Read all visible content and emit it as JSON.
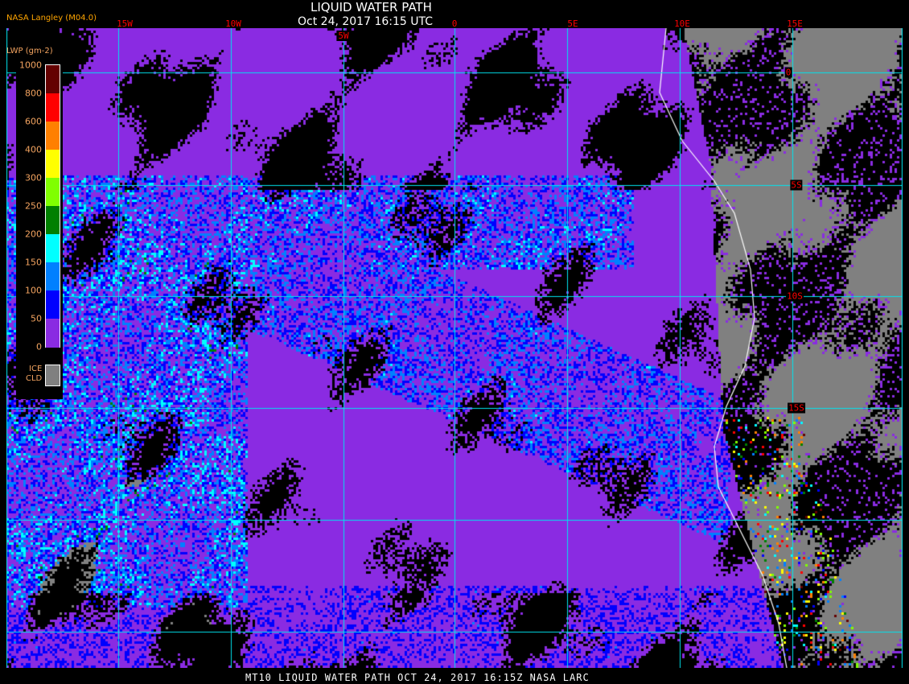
{
  "header": {
    "title": "LIQUID WATER PATH",
    "datetime": "Oct 24, 2017 16:15 UTC",
    "brand": "NASA Langley (M04.0)"
  },
  "footer": "MT10  LIQUID WATER PATH  OCT 24, 2017 16:15Z  NASA LARC",
  "longitude_labels": [
    "15W",
    "10W",
    "5W",
    "0",
    "5E",
    "10E",
    "15E"
  ],
  "latitude_labels": [
    "0",
    "5S",
    "10S",
    "15S"
  ],
  "legend": {
    "title": "LWP (gm-2)",
    "ticks": [
      "1000",
      "800",
      "600",
      "400",
      "300",
      "250",
      "200",
      "150",
      "100",
      "50",
      "0"
    ],
    "colors": [
      "#640000",
      "#ff0000",
      "#ff8000",
      "#ffff00",
      "#80ff00",
      "#008000",
      "#00ffff",
      "#0080ff",
      "#0000ff",
      "#8a2be2"
    ],
    "ice_label_1": "ICE",
    "ice_label_2": "CLD",
    "ice_color": "#808080"
  },
  "colors": {
    "grid": "#00e5ee",
    "clear": "#000000",
    "low_lwp": "#8a2be2",
    "coast": "#ffffff",
    "labels": "#ff0000"
  }
}
